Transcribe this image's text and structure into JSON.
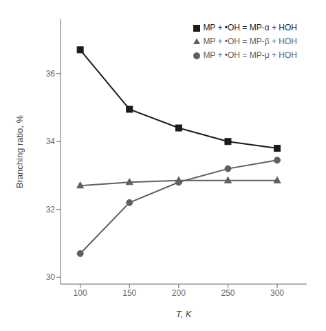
{
  "chart_data": {
    "type": "line",
    "x": [
      100,
      150,
      200,
      250,
      300
    ],
    "series": [
      {
        "name": "MP + •OH = MP-α + HOH",
        "color": "#1a1a1a",
        "marker": "square",
        "values": [
          36.7,
          34.95,
          34.4,
          34.0,
          33.8
        ]
      },
      {
        "name": "MP + •OH = MP-μ + HOH",
        "color": "#606060",
        "marker": "circle",
        "values": [
          30.7,
          32.2,
          32.8,
          33.2,
          33.45
        ]
      },
      {
        "name": "MP + •OH = MP-β + HOH",
        "color": "#606060",
        "marker": "triangle",
        "values": [
          32.7,
          32.8,
          32.85,
          32.85,
          32.85
        ]
      }
    ],
    "xlabel": "T, K",
    "ylabel": "Branching ratio, %",
    "xlim": [
      80,
      330
    ],
    "ylim": [
      29.8,
      37.6
    ],
    "xticks": [
      100,
      150,
      200,
      250,
      300
    ],
    "yticks": [
      30,
      32,
      34,
      36
    ],
    "grid": false,
    "legend": "upper right"
  }
}
